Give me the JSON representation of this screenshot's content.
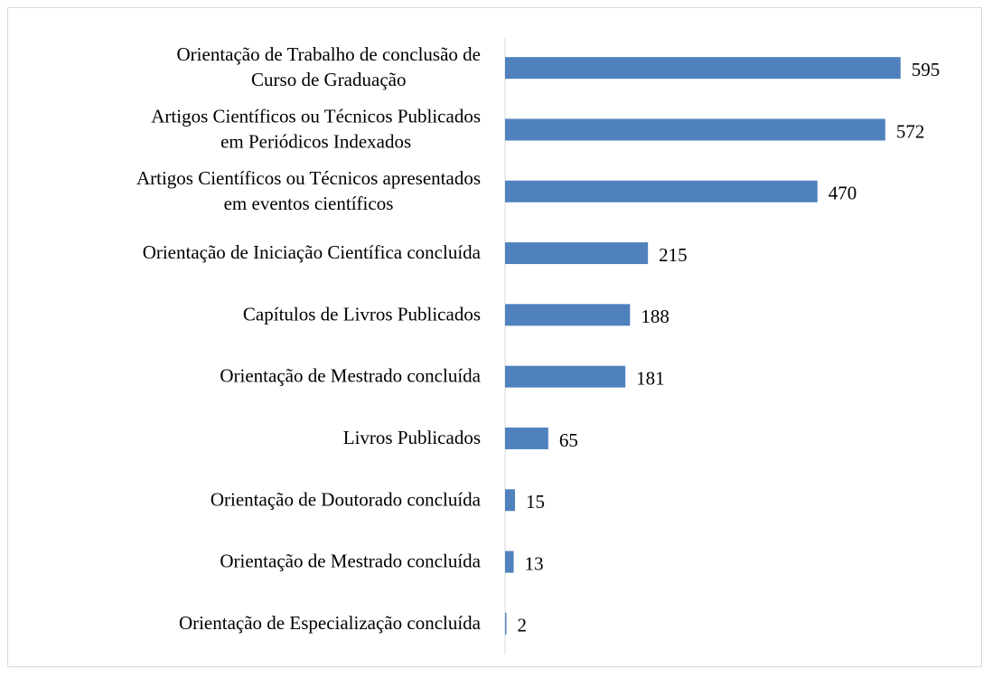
{
  "chart_data": {
    "type": "bar",
    "orientation": "horizontal",
    "categories": [
      "Orientação de Trabalho de conclusão de\nCurso de Graduação",
      "Artigos Científicos ou Técnicos Publicados\nem Periódicos Indexados",
      "Artigos Científicos ou Técnicos apresentados\nem eventos científicos",
      "Orientação de Iniciação Científica concluída",
      "Capítulos de Livros Publicados",
      "Orientação de Mestrado concluída",
      "Livros Publicados",
      "Orientação de Doutorado concluída",
      "Orientação de Mestrado concluída",
      "Orientação de Especialização concluída"
    ],
    "values": [
      595,
      572,
      470,
      215,
      188,
      181,
      65,
      15,
      13,
      2
    ],
    "color": "#4f81bd",
    "xlim": [
      0,
      700
    ]
  }
}
